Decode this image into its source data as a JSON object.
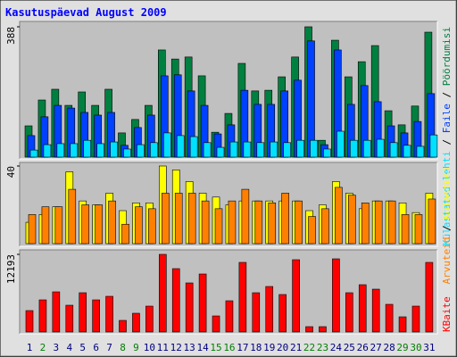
{
  "legend_separator": " / ",
  "chart_data": [
    {
      "type": "bar",
      "title": "Kasutuspäevad August 2009",
      "ylim": [
        0,
        388
      ],
      "yticks": [
        388
      ],
      "series": [
        {
          "name": "Pöördumisi",
          "color": "#008040",
          "values": [
            93,
            170,
            202,
            154,
            194,
            154,
            202,
            72,
            112,
            154,
            319,
            292,
            298,
            242,
            74,
            130,
            279,
            197,
            199,
            239,
            298,
            388,
            50,
            348,
            239,
            284,
            332,
            138,
            96,
            152,
            372
          ]
        },
        {
          "name": "Faile",
          "color": "#0040ff",
          "values": [
            64,
            120,
            154,
            146,
            133,
            125,
            133,
            35,
            88,
            125,
            242,
            245,
            197,
            154,
            69,
            96,
            199,
            157,
            157,
            197,
            229,
            346,
            37,
            319,
            157,
            213,
            165,
            93,
            72,
            106,
            189
          ]
        },
        {
          "name": "Külastatud lehti",
          "color": "#00e0ff",
          "values": [
            21,
            37,
            40,
            40,
            50,
            40,
            45,
            24,
            37,
            43,
            72,
            64,
            61,
            43,
            29,
            45,
            45,
            43,
            45,
            43,
            50,
            50,
            24,
            77,
            50,
            50,
            53,
            43,
            35,
            32,
            66
          ]
        }
      ]
    },
    {
      "type": "bar",
      "ylim": [
        0,
        40
      ],
      "yticks": [
        40
      ],
      "series": [
        {
          "name": "Külastusi",
          "color": "#ffff00",
          "values": [
            11,
            15,
            19,
            37,
            22,
            20,
            26,
            17,
            21,
            21,
            40,
            38,
            32,
            26,
            24,
            20,
            22,
            22,
            22,
            22,
            22,
            17,
            20,
            32,
            26,
            18,
            22,
            22,
            21,
            16,
            26
          ]
        },
        {
          "name": "Arvuteid",
          "color": "#ff8000",
          "values": [
            15,
            19,
            19,
            28,
            20,
            20,
            22,
            10,
            19,
            18,
            26,
            26,
            26,
            22,
            18,
            22,
            28,
            22,
            21,
            26,
            22,
            14,
            18,
            29,
            25,
            21,
            22,
            22,
            15,
            15,
            23
          ]
        }
      ]
    },
    {
      "type": "bar",
      "ylim": [
        0,
        12193
      ],
      "yticks": [
        12193
      ],
      "categories": [
        "1",
        "2",
        "3",
        "4",
        "5",
        "6",
        "7",
        "8",
        "9",
        "10",
        "11",
        "12",
        "13",
        "14",
        "15",
        "16",
        "17",
        "18",
        "19",
        "20",
        "21",
        "22",
        "23",
        "24",
        "25",
        "26",
        "27",
        "28",
        "29",
        "30",
        "31"
      ],
      "category_colors": [
        "#00007f",
        "#007f00",
        "#00007f",
        "#00007f",
        "#00007f",
        "#00007f",
        "#00007f",
        "#007f00",
        "#007f00",
        "#00007f",
        "#00007f",
        "#00007f",
        "#00007f",
        "#00007f",
        "#007f00",
        "#007f00",
        "#00007f",
        "#00007f",
        "#00007f",
        "#00007f",
        "#00007f",
        "#007f00",
        "#007f00",
        "#00007f",
        "#00007f",
        "#00007f",
        "#00007f",
        "#00007f",
        "#007f00",
        "#007f00",
        "#00007f"
      ],
      "series": [
        {
          "name": "KBaite",
          "color": "#ff0000",
          "values": [
            3364,
            5045,
            6307,
            4204,
            6167,
            5045,
            5606,
            1822,
            2943,
            4064,
            12193,
            9951,
            7708,
            9110,
            2523,
            4905,
            10932,
            6167,
            7148,
            5886,
            11352,
            841,
            841,
            11492,
            6167,
            7428,
            6727,
            4345,
            2383,
            4064,
            10932
          ]
        }
      ]
    }
  ]
}
